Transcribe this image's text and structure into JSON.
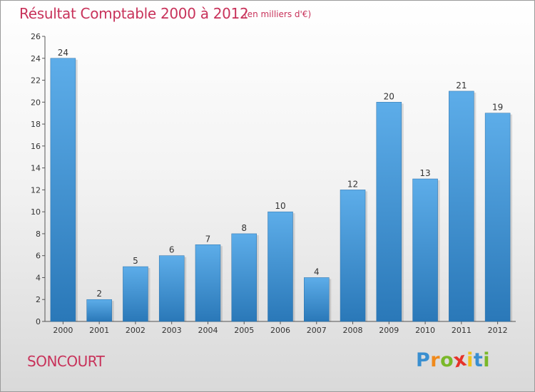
{
  "header": {
    "title": "Résultat Comptable 2000 à 2012",
    "subtitle": "(en milliers d'€)"
  },
  "footer": {
    "commune": "SONCOURT",
    "logo_letters": [
      "P",
      "r",
      "o",
      "x",
      "i",
      "t",
      "i"
    ],
    "logo_colors": [
      "#3a8fd0",
      "#f08a1c",
      "#7ab829",
      "#e6332a",
      "#f0c21b",
      "#3a8fd0",
      "#7ab829"
    ]
  },
  "chart_data": {
    "type": "bar",
    "categories": [
      "2000",
      "2001",
      "2002",
      "2003",
      "2004",
      "2005",
      "2006",
      "2007",
      "2008",
      "2009",
      "2010",
      "2011",
      "2012"
    ],
    "values": [
      24,
      2,
      5,
      6,
      7,
      8,
      10,
      4,
      12,
      20,
      13,
      21,
      19
    ],
    "ylim": [
      0,
      26
    ],
    "yticks": [
      0,
      2,
      4,
      6,
      8,
      10,
      12,
      14,
      16,
      18,
      20,
      22,
      24,
      26
    ],
    "grid": false,
    "bar_color_top": "#5dade9",
    "bar_color_bottom": "#2a78b8"
  }
}
